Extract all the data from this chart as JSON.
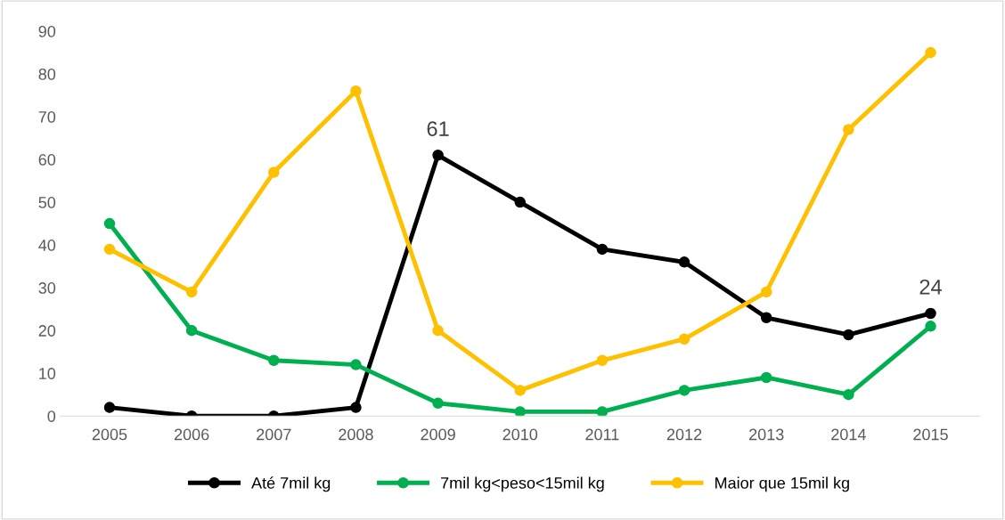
{
  "chart_data": {
    "type": "line",
    "categories": [
      "2005",
      "2006",
      "2007",
      "2008",
      "2009",
      "2010",
      "2011",
      "2012",
      "2013",
      "2014",
      "2015"
    ],
    "series": [
      {
        "name": "Até 7mil kg",
        "color": "#000000",
        "values": [
          2,
          0,
          0,
          2,
          61,
          50,
          39,
          36,
          23,
          19,
          24
        ],
        "value_labels": [
          null,
          null,
          null,
          null,
          "61",
          null,
          null,
          null,
          null,
          null,
          "24"
        ]
      },
      {
        "name": "7mil kg<peso<15mil kg",
        "color": "#00b050",
        "values": [
          45,
          20,
          13,
          12,
          3,
          1,
          1,
          6,
          9,
          5,
          21
        ]
      },
      {
        "name": "Maior que 15mil kg",
        "color": "#ffc000",
        "values": [
          39,
          29,
          57,
          76,
          20,
          6,
          13,
          18,
          29,
          67,
          85
        ]
      }
    ],
    "ylim": [
      0,
      90
    ],
    "yticks": [
      0,
      10,
      20,
      30,
      40,
      50,
      60,
      70,
      80,
      90
    ],
    "grid": false,
    "legend": "bottom",
    "marker": "circle",
    "line_style": "solid"
  }
}
